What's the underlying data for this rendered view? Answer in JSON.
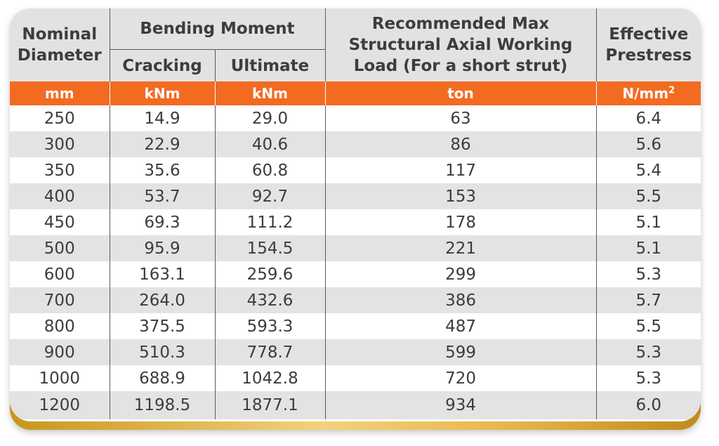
{
  "headers": {
    "nominal_diameter": "Nominal Diameter",
    "bending_moment": "Bending Moment",
    "cracking": "Cracking",
    "ultimate": "Ultimate",
    "axial_load": "Recommended Max Structural Axial Working Load (For a short strut)",
    "prestress": "Effective Prestress"
  },
  "units": {
    "diameter": "mm",
    "cracking": "kNm",
    "ultimate": "kNm",
    "axial_load": "ton",
    "prestress_base": "N/mm",
    "prestress_sup": "2"
  },
  "colors": {
    "header_bg": "#e2e2e2",
    "unit_row_bg": "#f26b21",
    "stripe_bg": "#e3e3e3",
    "gold_border": "#e9b950"
  },
  "rows": [
    {
      "diameter": "250",
      "cracking": "14.9",
      "ultimate": "29.0",
      "load": "63",
      "prestress": "6.4"
    },
    {
      "diameter": "300",
      "cracking": "22.9",
      "ultimate": "40.6",
      "load": "86",
      "prestress": "5.6"
    },
    {
      "diameter": "350",
      "cracking": "35.6",
      "ultimate": "60.8",
      "load": "117",
      "prestress": "5.4"
    },
    {
      "diameter": "400",
      "cracking": "53.7",
      "ultimate": "92.7",
      "load": "153",
      "prestress": "5.5"
    },
    {
      "diameter": "450",
      "cracking": "69.3",
      "ultimate": "111.2",
      "load": "178",
      "prestress": "5.1"
    },
    {
      "diameter": "500",
      "cracking": "95.9",
      "ultimate": "154.5",
      "load": "221",
      "prestress": "5.1"
    },
    {
      "diameter": "600",
      "cracking": "163.1",
      "ultimate": "259.6",
      "load": "299",
      "prestress": "5.3"
    },
    {
      "diameter": "700",
      "cracking": "264.0",
      "ultimate": "432.6",
      "load": "386",
      "prestress": "5.7"
    },
    {
      "diameter": "800",
      "cracking": "375.5",
      "ultimate": "593.3",
      "load": "487",
      "prestress": "5.5"
    },
    {
      "diameter": "900",
      "cracking": "510.3",
      "ultimate": "778.7",
      "load": "599",
      "prestress": "5.3"
    },
    {
      "diameter": "1000",
      "cracking": "688.9",
      "ultimate": "1042.8",
      "load": "720",
      "prestress": "5.3"
    },
    {
      "diameter": "1200",
      "cracking": "1198.5",
      "ultimate": "1877.1",
      "load": "934",
      "prestress": "6.0"
    }
  ]
}
